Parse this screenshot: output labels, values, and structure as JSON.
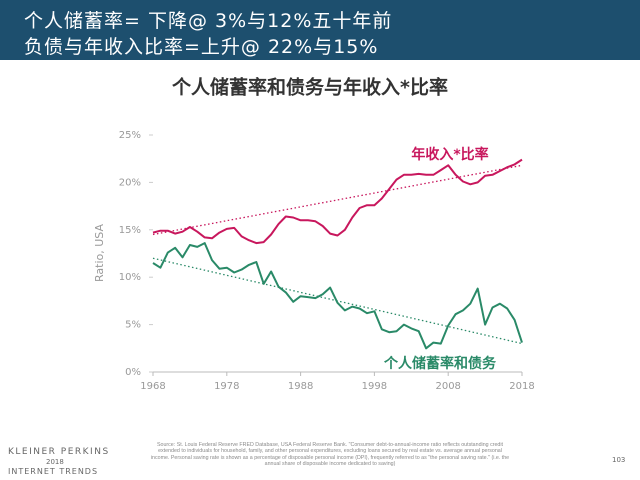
{
  "header": {
    "line1": "个人储蓄率= 下降@ 3%与12%五十年前",
    "line2": "负债与年收入比率=上升@ 22%与15%"
  },
  "chart_data": {
    "type": "line",
    "title": "个人储蓄率和债务与年收入*比率",
    "y_label": "Ratio, USA",
    "x": [
      1968,
      1969,
      1970,
      1971,
      1972,
      1973,
      1974,
      1975,
      1976,
      1977,
      1978,
      1979,
      1980,
      1981,
      1982,
      1983,
      1984,
      1985,
      1986,
      1987,
      1988,
      1989,
      1990,
      1991,
      1992,
      1993,
      1994,
      1995,
      1996,
      1997,
      1998,
      1999,
      2000,
      2001,
      2002,
      2003,
      2004,
      2005,
      2006,
      2007,
      2008,
      2009,
      2010,
      2011,
      2012,
      2013,
      2014,
      2015,
      2016,
      2017,
      2018
    ],
    "series": [
      {
        "name": "年收入*比率",
        "color": "#c8175d",
        "values": [
          14.7,
          14.9,
          14.9,
          14.6,
          14.8,
          15.3,
          14.8,
          14.2,
          14.1,
          14.7,
          15.1,
          15.2,
          14.3,
          13.9,
          13.6,
          13.7,
          14.5,
          15.6,
          16.4,
          16.3,
          16.0,
          16.0,
          15.9,
          15.4,
          14.6,
          14.4,
          15.0,
          16.3,
          17.3,
          17.6,
          17.6,
          18.3,
          19.3,
          20.3,
          20.8,
          20.8,
          20.9,
          20.8,
          20.8,
          21.3,
          21.8,
          20.8,
          20.1,
          19.8,
          20.0,
          20.7,
          20.8,
          21.2,
          21.6,
          21.9,
          22.4
        ]
      },
      {
        "name": "个人储蓄率和债务",
        "color": "#2a8a68",
        "values": [
          11.5,
          11.0,
          12.6,
          13.1,
          12.1,
          13.4,
          13.2,
          13.6,
          11.8,
          10.9,
          11.0,
          10.5,
          10.8,
          11.3,
          11.6,
          9.3,
          10.6,
          9.0,
          8.4,
          7.4,
          8.0,
          7.9,
          7.8,
          8.2,
          8.9,
          7.3,
          6.5,
          6.9,
          6.7,
          6.2,
          6.4,
          4.5,
          4.2,
          4.3,
          5.0,
          4.6,
          4.3,
          2.5,
          3.1,
          3.0,
          4.9,
          6.1,
          6.5,
          7.2,
          8.8,
          5.0,
          6.8,
          7.2,
          6.7,
          5.5,
          3.1
        ]
      }
    ],
    "trendlines": [
      {
        "color": "#c8175d",
        "x": [
          1968,
          2018
        ],
        "values": [
          14.5,
          21.8
        ]
      },
      {
        "color": "#2a8a68",
        "x": [
          1968,
          2018
        ],
        "values": [
          12.0,
          3.0
        ]
      }
    ],
    "xlim": [
      1968,
      2018
    ],
    "xticks": [
      1968,
      1978,
      1988,
      1998,
      2008,
      2018
    ],
    "ylim": [
      0,
      25
    ],
    "yticks": [
      {
        "value": 0,
        "label": "0%"
      },
      {
        "value": 5,
        "label": "5%"
      },
      {
        "value": 10,
        "label": "10%"
      },
      {
        "value": 15,
        "label": "15%"
      },
      {
        "value": 20,
        "label": "20%"
      },
      {
        "value": 25,
        "label": "25%"
      }
    ]
  },
  "footer": {
    "brand": "KLEINER PERKINS",
    "year": "2018",
    "report": "INTERNET TRENDS",
    "source": "Source: St. Louis Federal Reserve FRED Database, USA Federal Reserve Bank. \"Consumer debt-to-annual-income ratio reflects outstanding credit extended to individuals for household, family, and other personal expenditures, excluding loans secured by real estate vs. average annual personal income. Personal saving rate is shown as a percentage of disposable personal income (DPI), frequently referred to as \"the personal saving rate.\" (i.e. the annual share of disposable income dedicated to saving)",
    "page": "103"
  }
}
